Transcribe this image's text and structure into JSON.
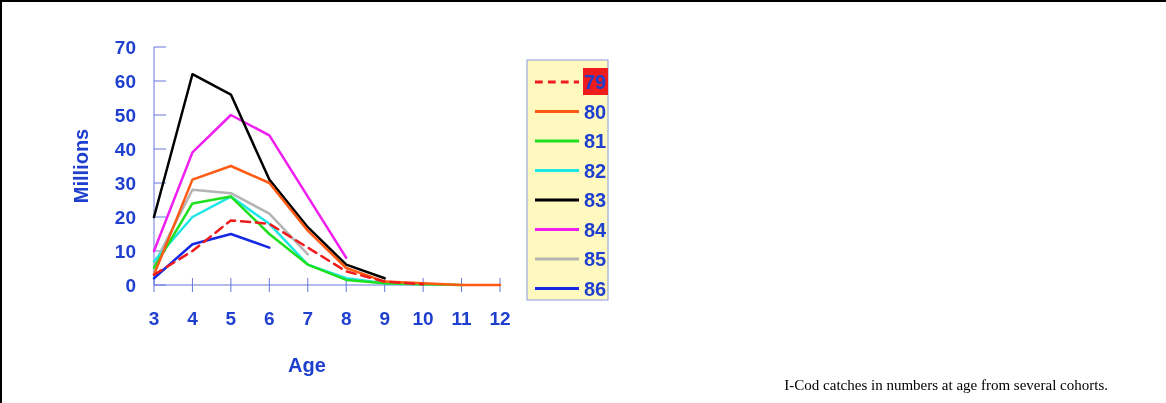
{
  "chart_data": {
    "type": "line",
    "xlabel": "Age",
    "ylabel": "Millions",
    "x": [
      3,
      4,
      5,
      6,
      7,
      8,
      9,
      10,
      11,
      12
    ],
    "xlim": [
      3,
      12
    ],
    "xticks": [
      3,
      4,
      5,
      6,
      7,
      8,
      9,
      10,
      11,
      12
    ],
    "ylim": [
      0,
      70
    ],
    "yticks": [
      0,
      10,
      20,
      30,
      40,
      50,
      60,
      70
    ],
    "legend": "right",
    "grid": false,
    "series": [
      {
        "name": "79",
        "color": "#ee1c1c",
        "line_style": "dashed",
        "values": [
          3,
          10,
          19,
          18,
          11,
          4,
          1,
          0.2,
          null,
          null
        ]
      },
      {
        "name": "80",
        "color": "#ff5a14",
        "values": [
          3,
          31,
          35,
          30,
          16,
          5,
          1,
          0.5,
          0,
          0
        ]
      },
      {
        "name": "81",
        "color": "#1ee01e",
        "values": [
          5,
          24,
          26,
          15,
          6,
          1.5,
          0.5,
          0.2,
          0,
          null
        ]
      },
      {
        "name": "82",
        "color": "#1ee6e6",
        "values": [
          7,
          20,
          26,
          18,
          6,
          2,
          0.5,
          0.2,
          null,
          null
        ]
      },
      {
        "name": "83",
        "color": "#000000",
        "values": [
          20,
          62,
          56,
          31,
          17,
          6,
          2,
          null,
          null,
          null
        ]
      },
      {
        "name": "84",
        "color": "#f01ef0",
        "values": [
          10,
          39,
          50,
          44,
          26,
          8,
          null,
          null,
          null,
          null
        ]
      },
      {
        "name": "85",
        "color": "#b4b4b4",
        "values": [
          6,
          28,
          27,
          21,
          9,
          null,
          null,
          null,
          null,
          null
        ]
      },
      {
        "name": "86",
        "color": "#1428e6",
        "values": [
          2,
          12,
          15,
          11,
          null,
          null,
          null,
          null,
          null,
          null
        ]
      }
    ],
    "annotations": [
      "I-Cod catches in numbers at age from several cohorts."
    ]
  }
}
